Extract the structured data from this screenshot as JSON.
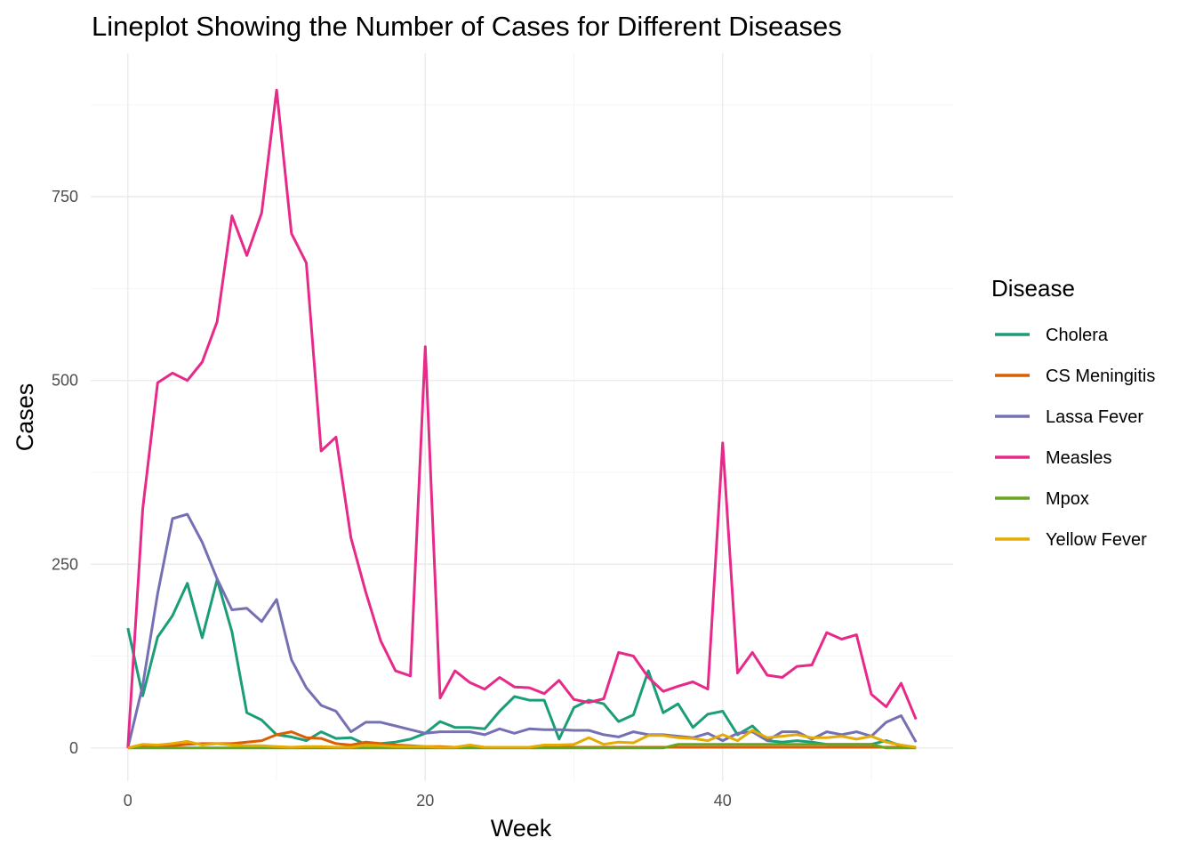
{
  "chart_data": {
    "type": "line",
    "title": "Lineplot Showing the Number of Cases for Different Diseases",
    "xlabel": "Week",
    "ylabel": "Cases",
    "xlim": [
      -2.5,
      55.5
    ],
    "ylim": [
      -45,
      945
    ],
    "x_ticks": [
      0,
      20,
      40
    ],
    "x_minor_ticks": [
      10,
      30,
      50
    ],
    "y_ticks": [
      0,
      250,
      500,
      750
    ],
    "y_minor_ticks": [
      125,
      375,
      625,
      875
    ],
    "grid": true,
    "legend": {
      "title": "Disease",
      "position": "right"
    },
    "x": [
      0,
      1,
      2,
      3,
      4,
      5,
      6,
      7,
      8,
      9,
      10,
      11,
      12,
      13,
      14,
      15,
      16,
      17,
      18,
      19,
      20,
      21,
      22,
      23,
      24,
      25,
      26,
      27,
      28,
      29,
      30,
      31,
      32,
      33,
      34,
      35,
      36,
      37,
      38,
      39,
      40,
      41,
      42,
      43,
      44,
      45,
      46,
      47,
      48,
      49,
      50,
      51,
      52,
      53
    ],
    "series": [
      {
        "name": "Cholera",
        "color": "#1b9e77",
        "values": [
          163,
          71,
          151,
          180,
          224,
          150,
          229,
          158,
          48,
          38,
          18,
          15,
          10,
          22,
          13,
          14,
          5,
          6,
          8,
          12,
          20,
          36,
          28,
          28,
          26,
          50,
          70,
          65,
          65,
          12,
          55,
          65,
          60,
          36,
          45,
          105,
          48,
          60,
          28,
          46,
          50,
          18,
          30,
          10,
          8,
          10,
          8,
          5,
          5,
          5,
          5,
          10,
          3,
          0
        ]
      },
      {
        "name": "CS Meningitis",
        "color": "#d95f02",
        "values": [
          0,
          2,
          3,
          3,
          5,
          6,
          6,
          6,
          8,
          10,
          18,
          22,
          14,
          13,
          6,
          4,
          8,
          6,
          4,
          3,
          2,
          2,
          1,
          1,
          1,
          1,
          1,
          1,
          1,
          1,
          1,
          1,
          1,
          1,
          1,
          1,
          1,
          1,
          1,
          1,
          1,
          1,
          1,
          1,
          1,
          1,
          1,
          1,
          1,
          1,
          1,
          1,
          1,
          1
        ]
      },
      {
        "name": "Lassa Fever",
        "color": "#7570b3",
        "values": [
          0,
          85,
          210,
          312,
          318,
          280,
          230,
          188,
          190,
          172,
          202,
          120,
          82,
          58,
          50,
          22,
          35,
          35,
          30,
          25,
          20,
          22,
          22,
          22,
          18,
          26,
          20,
          26,
          25,
          25,
          24,
          24,
          18,
          15,
          22,
          18,
          18,
          16,
          14,
          20,
          10,
          20,
          22,
          10,
          22,
          22,
          12,
          22,
          18,
          22,
          16,
          35,
          44,
          8
        ]
      },
      {
        "name": "Measles",
        "color": "#e7298a",
        "values": [
          0,
          325,
          497,
          510,
          500,
          525,
          580,
          724,
          670,
          728,
          895,
          700,
          660,
          404,
          423,
          286,
          212,
          146,
          105,
          98,
          546,
          68,
          105,
          89,
          80,
          96,
          83,
          82,
          74,
          92,
          66,
          62,
          67,
          130,
          125,
          96,
          77,
          84,
          90,
          80,
          415,
          102,
          130,
          99,
          96,
          111,
          113,
          157,
          148,
          154,
          73,
          56,
          88,
          39
        ]
      },
      {
        "name": "Mpox",
        "color": "#66a61e",
        "values": [
          0,
          0,
          0,
          0,
          0,
          0,
          0,
          0,
          0,
          0,
          0,
          0,
          0,
          0,
          0,
          0,
          0,
          0,
          0,
          0,
          0,
          0,
          0,
          0,
          0,
          0,
          0,
          0,
          0,
          0,
          0,
          0,
          0,
          0,
          0,
          0,
          0,
          5,
          5,
          5,
          5,
          5,
          5,
          5,
          5,
          5,
          5,
          5,
          5,
          5,
          5,
          0,
          0,
          0
        ]
      },
      {
        "name": "Yellow Fever",
        "color": "#e6ab02",
        "values": [
          0,
          5,
          4,
          6,
          9,
          4,
          6,
          4,
          3,
          3,
          2,
          1,
          2,
          2,
          1,
          1,
          4,
          3,
          2,
          2,
          2,
          1,
          1,
          4,
          1,
          1,
          1,
          1,
          4,
          4,
          5,
          14,
          5,
          8,
          7,
          17,
          17,
          14,
          13,
          10,
          18,
          10,
          24,
          14,
          16,
          18,
          14,
          14,
          16,
          12,
          16,
          8,
          4,
          1
        ]
      }
    ]
  }
}
